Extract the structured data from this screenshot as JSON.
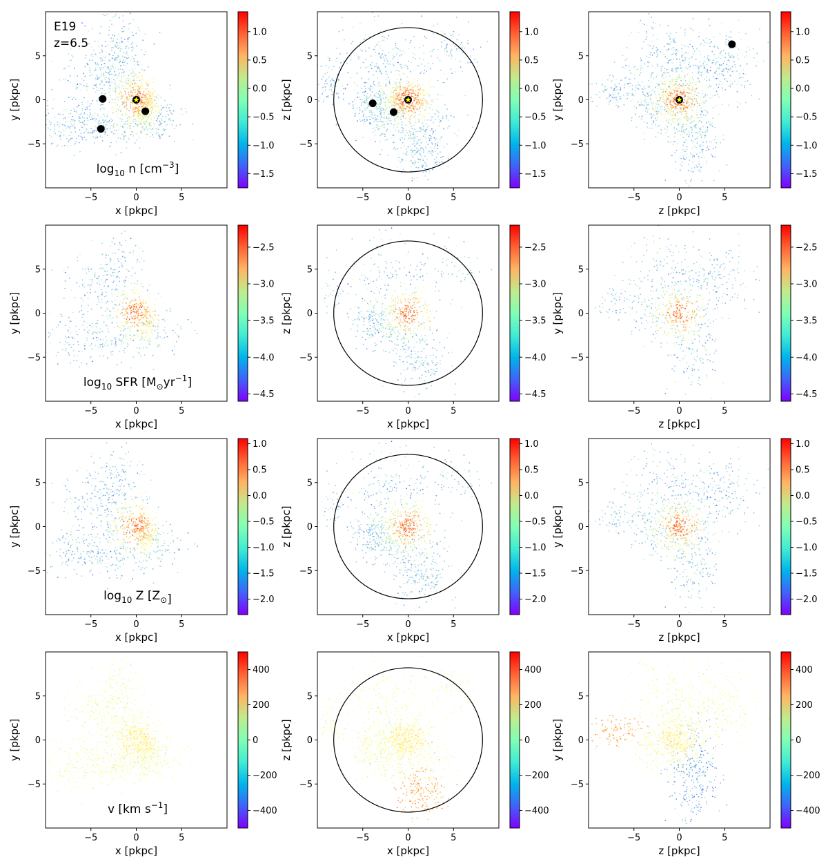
{
  "figure_label": {
    "name": "E19",
    "redshift": "z=6.5"
  },
  "colorscale": "rainbow",
  "chart_data": {
    "type": "scatter",
    "description_rows": [
      {
        "quantity": "n",
        "label": {
          "prefix": "log",
          "sub": "10",
          "main": " n [cm",
          "sup": "−3",
          "suffix": "]"
        },
        "clim": [
          -1.75,
          1.35
        ],
        "ticks": [
          -1.5,
          -1.0,
          -0.5,
          0.0,
          0.5,
          1.0
        ],
        "tick_labels": [
          "−1.5",
          "−1.0",
          "−0.5",
          "0.0",
          "0.5",
          "1.0"
        ]
      },
      {
        "quantity": "SFR",
        "label": {
          "prefix": "log",
          "sub": "10",
          "main": " SFR [M",
          "sub2": "⊙",
          "main2": "yr",
          "sup": "−1",
          "suffix": "]"
        },
        "clim": [
          -4.6,
          -2.2
        ],
        "ticks": [
          -4.5,
          -4.0,
          -3.5,
          -3.0,
          -2.5
        ],
        "tick_labels": [
          "−4.5",
          "−4.0",
          "−3.5",
          "−3.0",
          "−2.5"
        ]
      },
      {
        "quantity": "Z",
        "label": {
          "prefix": "log",
          "sub": "10",
          "main": " Z [Z",
          "sub2": "⊙",
          "suffix": "]"
        },
        "clim": [
          -2.3,
          1.1
        ],
        "ticks": [
          -2.0,
          -1.5,
          -1.0,
          -0.5,
          0.0,
          0.5,
          1.0
        ],
        "tick_labels": [
          "−2.0",
          "−1.5",
          "−1.0",
          "−0.5",
          "0.0",
          "0.5",
          "1.0"
        ]
      },
      {
        "quantity": "v",
        "label": {
          "prefix": "v [km s",
          "sup": "−1",
          "suffix": "]"
        },
        "clim": [
          -500,
          500
        ],
        "ticks": [
          -400,
          -200,
          0,
          200,
          400
        ],
        "tick_labels": [
          "−400",
          "−200",
          "0",
          "200",
          "400"
        ]
      }
    ],
    "columns": [
      {
        "xlabel": "x [pkpc]",
        "ylabel": "y [pkpc]",
        "circle": false
      },
      {
        "xlabel": "x [pkpc]",
        "ylabel": "z [pkpc]",
        "circle": true
      },
      {
        "xlabel": "z [pkpc]",
        "ylabel": "y [pkpc]",
        "circle": false
      }
    ],
    "xlim": [
      -10,
      10
    ],
    "ylim": [
      -10,
      10
    ],
    "xticks": [
      -5,
      0,
      5
    ],
    "yticks": [
      -5,
      0,
      5
    ],
    "xtick_labels": [
      "−5",
      "0",
      "5"
    ],
    "ytick_labels": [
      "−5",
      "0",
      "5"
    ],
    "aperture_radius_pkpc": 8.2,
    "markers": {
      "col0": {
        "satellites": [
          [
            -3.7,
            0.1
          ],
          [
            1.0,
            -1.3
          ],
          [
            -3.9,
            -3.3
          ]
        ],
        "center": [
          0,
          0
        ]
      },
      "col1": {
        "satellites": [
          [
            -3.9,
            -0.4
          ],
          [
            -1.6,
            -1.4
          ]
        ],
        "center": [
          0,
          0
        ]
      },
      "col2": {
        "satellites": [
          [
            5.8,
            6.3
          ]
        ],
        "center": [
          0,
          0
        ]
      }
    }
  }
}
